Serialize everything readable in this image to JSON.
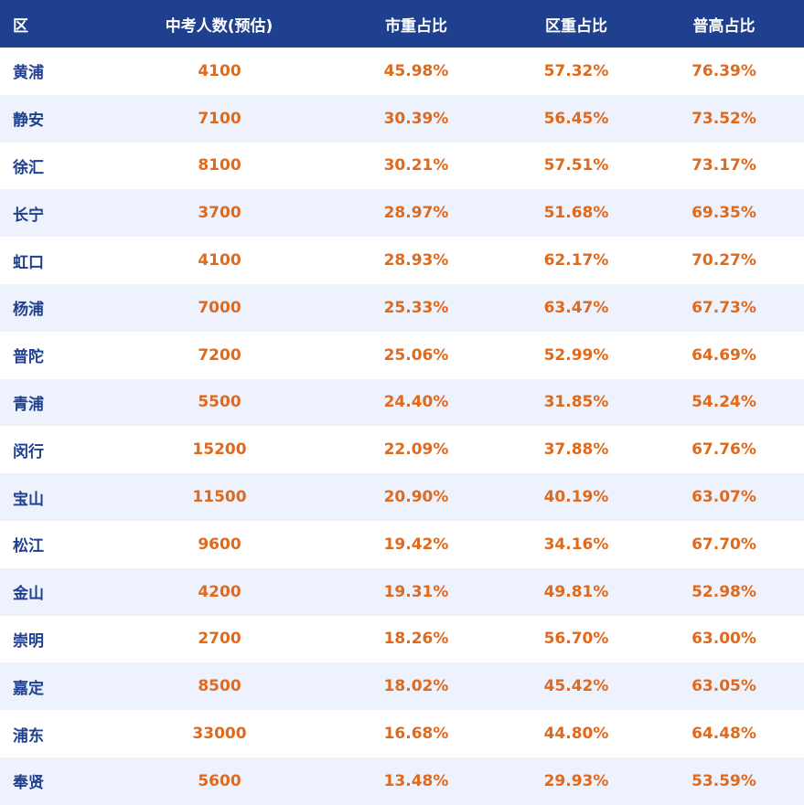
{
  "table": {
    "headers": [
      "区",
      "中考人数(预估)",
      "市重占比",
      "区重占比",
      "普高占比"
    ],
    "rows": [
      [
        "黄浦",
        "4100",
        "45.98%",
        "57.32%",
        "76.39%"
      ],
      [
        "静安",
        "7100",
        "30.39%",
        "56.45%",
        "73.52%"
      ],
      [
        "徐汇",
        "8100",
        "30.21%",
        "57.51%",
        "73.17%"
      ],
      [
        "长宁",
        "3700",
        "28.97%",
        "51.68%",
        "69.35%"
      ],
      [
        "虹口",
        "4100",
        "28.93%",
        "62.17%",
        "70.27%"
      ],
      [
        "杨浦",
        "7000",
        "25.33%",
        "63.47%",
        "67.73%"
      ],
      [
        "普陀",
        "7200",
        "25.06%",
        "52.99%",
        "64.69%"
      ],
      [
        "青浦",
        "5500",
        "24.40%",
        "31.85%",
        "54.24%"
      ],
      [
        "闵行",
        "15200",
        "22.09%",
        "37.88%",
        "67.76%"
      ],
      [
        "宝山",
        "11500",
        "20.90%",
        "40.19%",
        "63.07%"
      ],
      [
        "松江",
        "9600",
        "19.42%",
        "34.16%",
        "67.70%"
      ],
      [
        "金山",
        "4200",
        "19.31%",
        "49.81%",
        "52.98%"
      ],
      [
        "崇明",
        "2700",
        "18.26%",
        "56.70%",
        "63.00%"
      ],
      [
        "嘉定",
        "8500",
        "18.02%",
        "45.42%",
        "63.05%"
      ],
      [
        "浦东",
        "33000",
        "16.68%",
        "44.80%",
        "64.48%"
      ],
      [
        "奉贤",
        "5600",
        "13.48%",
        "29.93%",
        "53.59%"
      ]
    ]
  },
  "colors": {
    "header_bg": "#1f3f8f",
    "header_text": "#ffffff",
    "district_text": "#1f3f8f",
    "value_text": "#e0691c",
    "row_alt_bg": "#eef2fd",
    "row_bg": "#ffffff"
  }
}
